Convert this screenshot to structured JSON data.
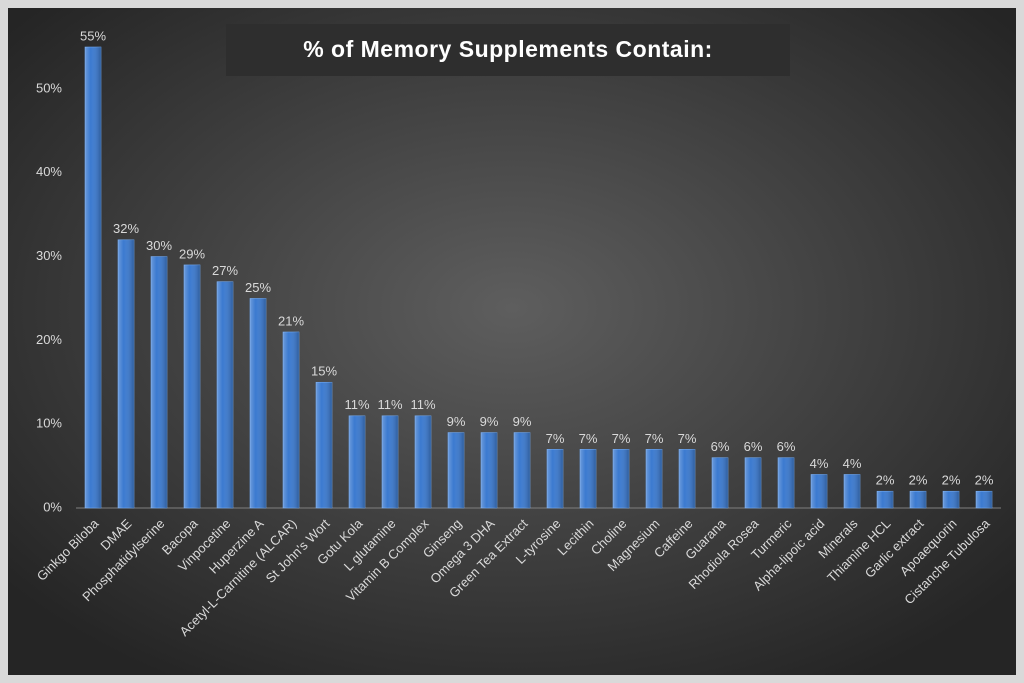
{
  "chart_data": {
    "type": "bar",
    "title": "% of Memory Supplements Contain:",
    "categories": [
      "Ginkgo Biloba",
      "DMAE",
      "Phosphatidylserine",
      "Bacopa",
      "Vinpocetine",
      "Huperzine A",
      "Acetyl-L-Carnitine (ALCAR)",
      "St John's Wort",
      "Gotu Kola",
      "L glutamine",
      "Vitamin B Complex",
      "Ginseng",
      "Omega 3 DHA",
      "Green Tea Extract",
      "L-tyrosine",
      "Lecithin",
      "Choline",
      "Magnesium",
      "Caffeine",
      "Guarana",
      "Rhodiola Rosea",
      "Turmeric",
      "Alpha-lipoic acid",
      "Minerals",
      "Thiamine HCL",
      "Garlic extract",
      "Apoaequorin",
      "Cistanche Tubulosa"
    ],
    "values": [
      55,
      32,
      30,
      29,
      27,
      25,
      21,
      15,
      11,
      11,
      11,
      9,
      9,
      9,
      7,
      7,
      7,
      7,
      7,
      6,
      6,
      6,
      4,
      4,
      2,
      2,
      2,
      2
    ],
    "value_labels": [
      "55%",
      "32%",
      "30%",
      "29%",
      "27%",
      "25%",
      "21%",
      "15%",
      "11%",
      "11%",
      "11%",
      "9%",
      "9%",
      "9%",
      "7%",
      "7%",
      "7%",
      "7%",
      "7%",
      "6%",
      "6%",
      "6%",
      "4%",
      "4%",
      "2%",
      "2%",
      "2%",
      "2%"
    ],
    "color": "#3b7ad0",
    "ylim": [
      0,
      55
    ],
    "yticks": [
      {
        "value": 0,
        "label": "0%"
      },
      {
        "value": 10,
        "label": "10%"
      },
      {
        "value": 20,
        "label": "20%"
      },
      {
        "value": 30,
        "label": "30%"
      },
      {
        "value": 40,
        "label": "40%"
      },
      {
        "value": 50,
        "label": "50%"
      }
    ],
    "grid": false
  }
}
